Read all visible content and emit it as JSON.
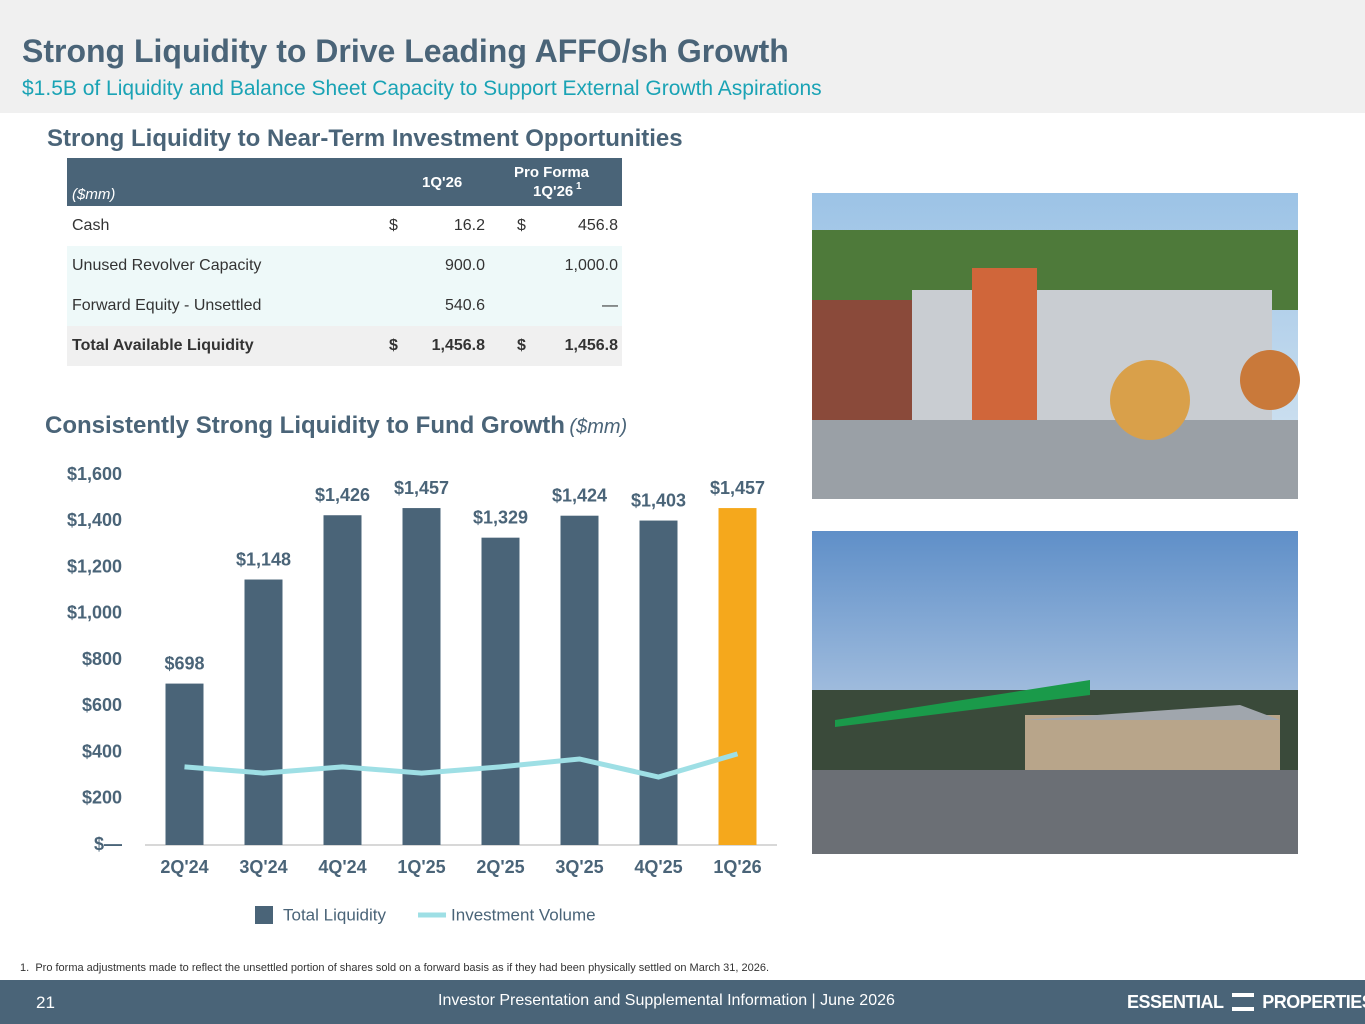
{
  "header": {
    "title": "Strong Liquidity to Drive Leading AFFO/sh Growth",
    "subtitle": "$1.5B of Liquidity and Balance Sheet Capacity to Support External Growth Aspirations"
  },
  "table_section": {
    "title": "Strong Liquidity to Near-Term Investment Opportunities",
    "table": {
      "header": {
        "unit": "($mm)",
        "col1": "1Q'26",
        "col2_line1": "Pro Forma",
        "col2_line2": "1Q'26",
        "col2_note": "1"
      },
      "rows": [
        [
          "Cash",
          "$",
          "16.2",
          "$",
          "456.8"
        ],
        [
          "Unused Revolver Capacity",
          null,
          "900.0",
          null,
          "1,000.0"
        ],
        [
          "Forward Equity - Unsettled",
          null,
          "540.6",
          null,
          "—"
        ],
        [
          "Total Available Liquidity",
          "$",
          "1,456.8",
          "$",
          "1,456.8"
        ]
      ]
    }
  },
  "chart_data": {
    "type": "bar",
    "title": "Consistently Strong Liquidity to Fund Growth",
    "title_unit": "($mm)",
    "categories": [
      "2Q'24",
      "3Q'24",
      "4Q'24",
      "1Q'25",
      "2Q'25",
      "3Q'25",
      "4Q'25",
      "1Q'26"
    ],
    "series": [
      {
        "name": "Total Liquidity",
        "type": "bar",
        "color": "#4a6478",
        "highlight_color": "#f5a81c",
        "highlight_index": 7,
        "values": [
          698,
          1148,
          1426,
          1457,
          1329,
          1424,
          1403,
          1457
        ],
        "value_labels": [
          "$698",
          "$1,148",
          "$1,426",
          "$1,457",
          "$1,329",
          "$1,424",
          "$1,403",
          "$1,457"
        ]
      },
      {
        "name": "Investment Volume",
        "type": "line",
        "color": "#9edfe5",
        "values": [
          338,
          311,
          338,
          311,
          338,
          372,
          294,
          394
        ]
      }
    ],
    "ylim": [
      0,
      1600
    ],
    "yticks": [
      {
        "value": 0,
        "label": "$—"
      },
      {
        "value": 200,
        "label": "$200"
      },
      {
        "value": 400,
        "label": "$400"
      },
      {
        "value": 600,
        "label": "$600"
      },
      {
        "value": 800,
        "label": "$800"
      },
      {
        "value": 1000,
        "label": "$1,000"
      },
      {
        "value": 1200,
        "label": "$1,200"
      },
      {
        "value": 1400,
        "label": "$1,400"
      },
      {
        "value": 1600,
        "label": "$1,600"
      }
    ],
    "grid": false,
    "legend": "bottom"
  },
  "footnote": {
    "marker": "1.",
    "text": "Pro forma adjustments made to reflect the unsettled portion of shares sold on a forward basis as if they had been physically settled on March 31, 2026."
  },
  "footer": {
    "page": "21",
    "text": "Investor Presentation and Supplemental Information |  June 2026",
    "logo_left": "ESSENTIAL",
    "logo_right": "PROPERTIES"
  }
}
